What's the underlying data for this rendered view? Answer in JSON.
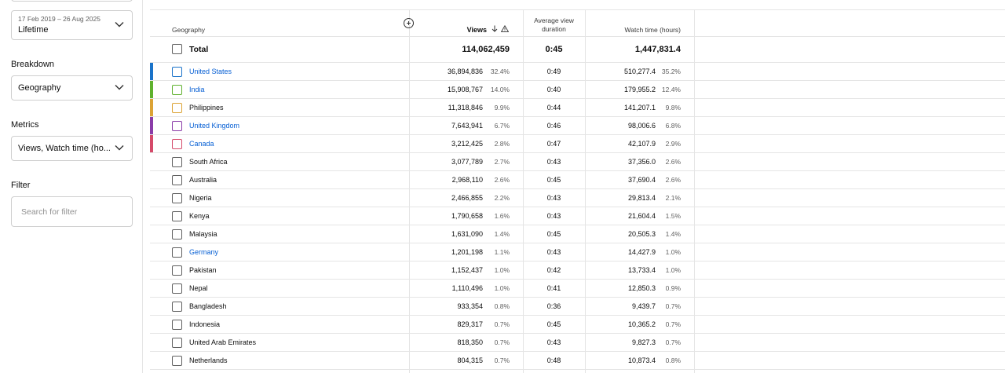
{
  "sidebar": {
    "date_range": {
      "range_text": "17 Feb 2019 – 26 Aug 2025",
      "value": "Lifetime"
    },
    "breakdown": {
      "label": "Breakdown",
      "value": "Geography"
    },
    "metrics": {
      "label": "Metrics",
      "value": "Views, Watch time (ho..."
    },
    "filter": {
      "label": "Filter",
      "placeholder": "Search for filter"
    }
  },
  "table": {
    "headers": {
      "geography": "Geography",
      "views": "Views",
      "avg_view_duration": "Average view duration",
      "watch_time": "Watch time (hours)"
    },
    "icons": {
      "sort": "arrow-down-icon",
      "warning": "warning-triangle-icon",
      "add_column": "plus-circle-icon"
    },
    "total": {
      "label": "Total",
      "views": "114,062,459",
      "avg_view_duration": "0:45",
      "watch_time": "1,447,831.4"
    },
    "rows": [
      {
        "country": "United States",
        "views": "36,894,836",
        "views_pct": "32.4%",
        "avd": "0:49",
        "watch_time": "510,277.4",
        "watch_pct": "35.2%",
        "color": "#1a73c9",
        "link": true
      },
      {
        "country": "India",
        "views": "15,908,767",
        "views_pct": "14.0%",
        "avd": "0:40",
        "watch_time": "179,955.2",
        "watch_pct": "12.4%",
        "color": "#5fb12e",
        "link": true
      },
      {
        "country": "Philippines",
        "views": "11,318,846",
        "views_pct": "9.9%",
        "avd": "0:44",
        "watch_time": "141,207.1",
        "watch_pct": "9.8%",
        "color": "#dca335",
        "link": false
      },
      {
        "country": "United Kingdom",
        "views": "7,643,941",
        "views_pct": "6.7%",
        "avd": "0:46",
        "watch_time": "98,006.6",
        "watch_pct": "6.8%",
        "color": "#8a3ca8",
        "link": true
      },
      {
        "country": "Canada",
        "views": "3,212,425",
        "views_pct": "2.8%",
        "avd": "0:47",
        "watch_time": "42,107.9",
        "watch_pct": "2.9%",
        "color": "#d54a6a",
        "link": true
      },
      {
        "country": "South Africa",
        "views": "3,077,789",
        "views_pct": "2.7%",
        "avd": "0:43",
        "watch_time": "37,356.0",
        "watch_pct": "2.6%",
        "color": "",
        "link": false
      },
      {
        "country": "Australia",
        "views": "2,968,110",
        "views_pct": "2.6%",
        "avd": "0:45",
        "watch_time": "37,690.4",
        "watch_pct": "2.6%",
        "color": "",
        "link": false
      },
      {
        "country": "Nigeria",
        "views": "2,466,855",
        "views_pct": "2.2%",
        "avd": "0:43",
        "watch_time": "29,813.4",
        "watch_pct": "2.1%",
        "color": "",
        "link": false
      },
      {
        "country": "Kenya",
        "views": "1,790,658",
        "views_pct": "1.6%",
        "avd": "0:43",
        "watch_time": "21,604.4",
        "watch_pct": "1.5%",
        "color": "",
        "link": false
      },
      {
        "country": "Malaysia",
        "views": "1,631,090",
        "views_pct": "1.4%",
        "avd": "0:45",
        "watch_time": "20,505.3",
        "watch_pct": "1.4%",
        "color": "",
        "link": false
      },
      {
        "country": "Germany",
        "views": "1,201,198",
        "views_pct": "1.1%",
        "avd": "0:43",
        "watch_time": "14,427.9",
        "watch_pct": "1.0%",
        "color": "",
        "link": true
      },
      {
        "country": "Pakistan",
        "views": "1,152,437",
        "views_pct": "1.0%",
        "avd": "0:42",
        "watch_time": "13,733.4",
        "watch_pct": "1.0%",
        "color": "",
        "link": false
      },
      {
        "country": "Nepal",
        "views": "1,110,496",
        "views_pct": "1.0%",
        "avd": "0:41",
        "watch_time": "12,850.3",
        "watch_pct": "0.9%",
        "color": "",
        "link": false
      },
      {
        "country": "Bangladesh",
        "views": "933,354",
        "views_pct": "0.8%",
        "avd": "0:36",
        "watch_time": "9,439.7",
        "watch_pct": "0.7%",
        "color": "",
        "link": false
      },
      {
        "country": "Indonesia",
        "views": "829,317",
        "views_pct": "0.7%",
        "avd": "0:45",
        "watch_time": "10,365.2",
        "watch_pct": "0.7%",
        "color": "",
        "link": false
      },
      {
        "country": "United Arab Emirates",
        "views": "818,350",
        "views_pct": "0.7%",
        "avd": "0:43",
        "watch_time": "9,827.3",
        "watch_pct": "0.7%",
        "color": "",
        "link": false
      },
      {
        "country": "Netherlands",
        "views": "804,315",
        "views_pct": "0.7%",
        "avd": "0:48",
        "watch_time": "10,873.4",
        "watch_pct": "0.8%",
        "color": "",
        "link": false
      }
    ]
  }
}
